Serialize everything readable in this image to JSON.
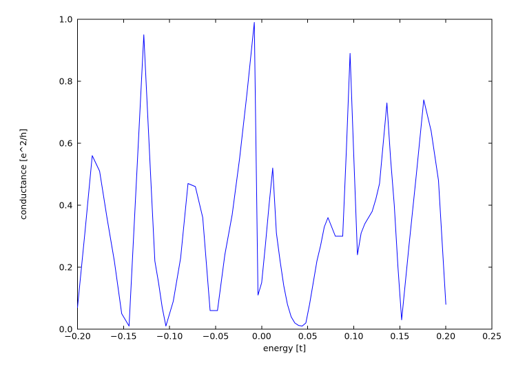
{
  "chart_data": {
    "type": "line",
    "title": "",
    "xlabel": "energy [t]",
    "ylabel": "conductance [e^2/h]",
    "xlim": [
      -0.2,
      0.25
    ],
    "ylim": [
      0.0,
      1.0
    ],
    "grid": false,
    "legend": "none",
    "line_color": "#0000ff",
    "axis_color": "#000000",
    "background_color": "#ffffff",
    "xticks": [
      -0.2,
      -0.15,
      -0.1,
      -0.05,
      0.0,
      0.05,
      0.1,
      0.15,
      0.2,
      0.25
    ],
    "xtick_labels": [
      "−0.20",
      "−0.15",
      "−0.10",
      "−0.05",
      "0.00",
      "0.05",
      "0.10",
      "0.15",
      "0.20",
      "0.25"
    ],
    "yticks": [
      0.0,
      0.2,
      0.4,
      0.6,
      0.8,
      1.0
    ],
    "ytick_labels": [
      "0.0",
      "0.2",
      "0.4",
      "0.6",
      "0.8",
      "1.0"
    ],
    "x": [
      -0.2,
      -0.192,
      -0.184,
      -0.176,
      -0.168,
      -0.16,
      -0.152,
      -0.144,
      -0.136,
      -0.128,
      -0.12,
      -0.116,
      -0.112,
      -0.108,
      -0.104,
      -0.096,
      -0.088,
      -0.08,
      -0.072,
      -0.064,
      -0.056,
      -0.048,
      -0.04,
      -0.032,
      -0.024,
      -0.016,
      -0.008,
      -0.004,
      0.0,
      0.004,
      0.008,
      0.012,
      0.016,
      0.02,
      0.024,
      0.028,
      0.032,
      0.036,
      0.04,
      0.044,
      0.048,
      0.052,
      0.056,
      0.06,
      0.064,
      0.068,
      0.072,
      0.076,
      0.08,
      0.088,
      0.092,
      0.096,
      0.1,
      0.104,
      0.108,
      0.112,
      0.116,
      0.12,
      0.124,
      0.128,
      0.132,
      0.136,
      0.14,
      0.144,
      0.148,
      0.152,
      0.16,
      0.168,
      0.176,
      0.184,
      0.188,
      0.192,
      0.2
    ],
    "series": [
      {
        "name": "conductance",
        "values": [
          0.07,
          0.31,
          0.56,
          0.51,
          0.36,
          0.22,
          0.05,
          0.01,
          0.48,
          0.95,
          0.46,
          0.22,
          0.15,
          0.07,
          0.01,
          0.09,
          0.23,
          0.47,
          0.46,
          0.36,
          0.06,
          0.06,
          0.24,
          0.37,
          0.55,
          0.76,
          0.99,
          0.11,
          0.15,
          0.27,
          0.4,
          0.52,
          0.31,
          0.22,
          0.14,
          0.08,
          0.04,
          0.02,
          0.012,
          0.01,
          0.02,
          0.08,
          0.15,
          0.22,
          0.27,
          0.33,
          0.36,
          0.33,
          0.3,
          0.3,
          0.58,
          0.89,
          0.56,
          0.24,
          0.31,
          0.34,
          0.36,
          0.38,
          0.42,
          0.47,
          0.6,
          0.73,
          0.55,
          0.4,
          0.2,
          0.03,
          0.27,
          0.5,
          0.74,
          0.64,
          0.56,
          0.48,
          0.08
        ]
      }
    ]
  }
}
